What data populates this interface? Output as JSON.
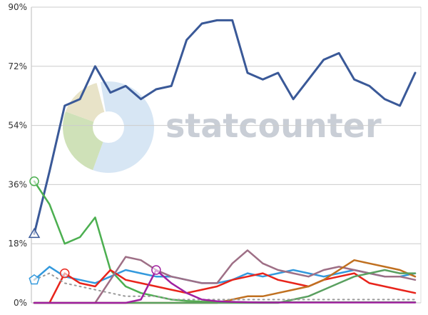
{
  "chart_data": {
    "type": "line",
    "title": "",
    "xlabel": "",
    "ylabel": "",
    "ylim": [
      0,
      90
    ],
    "yticks": [
      0,
      18,
      36,
      54,
      72,
      90
    ],
    "ytick_labels": [
      "0%",
      "18%",
      "36%",
      "54%",
      "72%",
      "90%"
    ],
    "grid": true,
    "legend": "none",
    "x": [
      0,
      4,
      8,
      12,
      16,
      20,
      24,
      28,
      32,
      36,
      40,
      44,
      48,
      52,
      56,
      60,
      64,
      68,
      72,
      76,
      80,
      84,
      88,
      92,
      96,
      100
    ],
    "series": [
      {
        "color": "#3a5998",
        "marker": "triangle",
        "values": [
          21,
          40,
          60,
          62,
          72,
          64,
          66,
          62,
          65,
          66,
          80,
          85,
          86,
          86,
          70,
          68,
          70,
          62,
          68,
          74,
          76,
          68,
          66,
          62,
          60,
          70
        ]
      },
      {
        "color": "#4caf50",
        "marker": "circle",
        "values": [
          37,
          30,
          18,
          20,
          26,
          10,
          5,
          3,
          2,
          1,
          0.6,
          0.4,
          0.3,
          0.3,
          0.2,
          0.2,
          0.2,
          0.2,
          0.2,
          0.2,
          0.2,
          0.2,
          0.2,
          0.2,
          0.2,
          0.2
        ]
      },
      {
        "color": "#3399dd",
        "marker": "pentagon",
        "values": [
          7,
          11,
          8,
          7,
          6,
          8,
          10,
          9,
          8,
          8,
          7,
          6,
          6,
          7,
          9,
          8,
          9,
          10,
          9,
          8,
          9,
          10,
          9,
          8,
          8,
          9
        ]
      },
      {
        "color": "#e8241b",
        "marker": "circle",
        "values": [
          0,
          0,
          9,
          6,
          5,
          10,
          7,
          6,
          5,
          4,
          3,
          4,
          5,
          7,
          8,
          9,
          7,
          6,
          5,
          7,
          8,
          9,
          6,
          5,
          4,
          3
        ]
      },
      {
        "color": "#9e6f86",
        "marker": "none",
        "values": [
          0,
          0,
          0,
          0,
          0,
          7,
          14,
          13,
          10,
          8,
          7,
          6,
          6,
          12,
          16,
          12,
          10,
          9,
          8,
          10,
          11,
          10,
          9,
          8,
          8,
          7
        ]
      },
      {
        "color": "#c07020",
        "marker": "none",
        "values": [
          0,
          0,
          0,
          0,
          0,
          0,
          0,
          0,
          0,
          0,
          0,
          0,
          0,
          1,
          2,
          2,
          3,
          4,
          5,
          7,
          10,
          13,
          12,
          11,
          10,
          8
        ]
      },
      {
        "color": "#5aa060",
        "marker": "none",
        "values": [
          0,
          0,
          0,
          0,
          0,
          0,
          0,
          0,
          0,
          0,
          0,
          0,
          0,
          0,
          0,
          0,
          0,
          1,
          2,
          4,
          6,
          8,
          9,
          10,
          9,
          9
        ]
      },
      {
        "color": "#999999",
        "marker": "none",
        "dashed": true,
        "values": [
          7,
          9,
          6,
          5,
          4,
          3,
          2,
          2,
          2,
          1,
          1,
          1,
          1,
          1,
          1,
          1,
          1,
          1,
          1,
          1,
          1,
          1,
          1,
          1,
          1,
          1
        ]
      },
      {
        "color": "#a020a0",
        "marker": "circle",
        "values": [
          0,
          0,
          0,
          0,
          0,
          0,
          0,
          1,
          10,
          6,
          3,
          1,
          0.5,
          0.3,
          0.2,
          0.1,
          0.1,
          0.1,
          0.1,
          0.1,
          0.1,
          0.1,
          0.1,
          0.1,
          0.1,
          0.1
        ]
      }
    ]
  },
  "watermark": {
    "text": "statcounter",
    "colors": [
      "#d7e6f4",
      "#cfe1b8",
      "#e8e3c8",
      "#ffffff"
    ]
  }
}
